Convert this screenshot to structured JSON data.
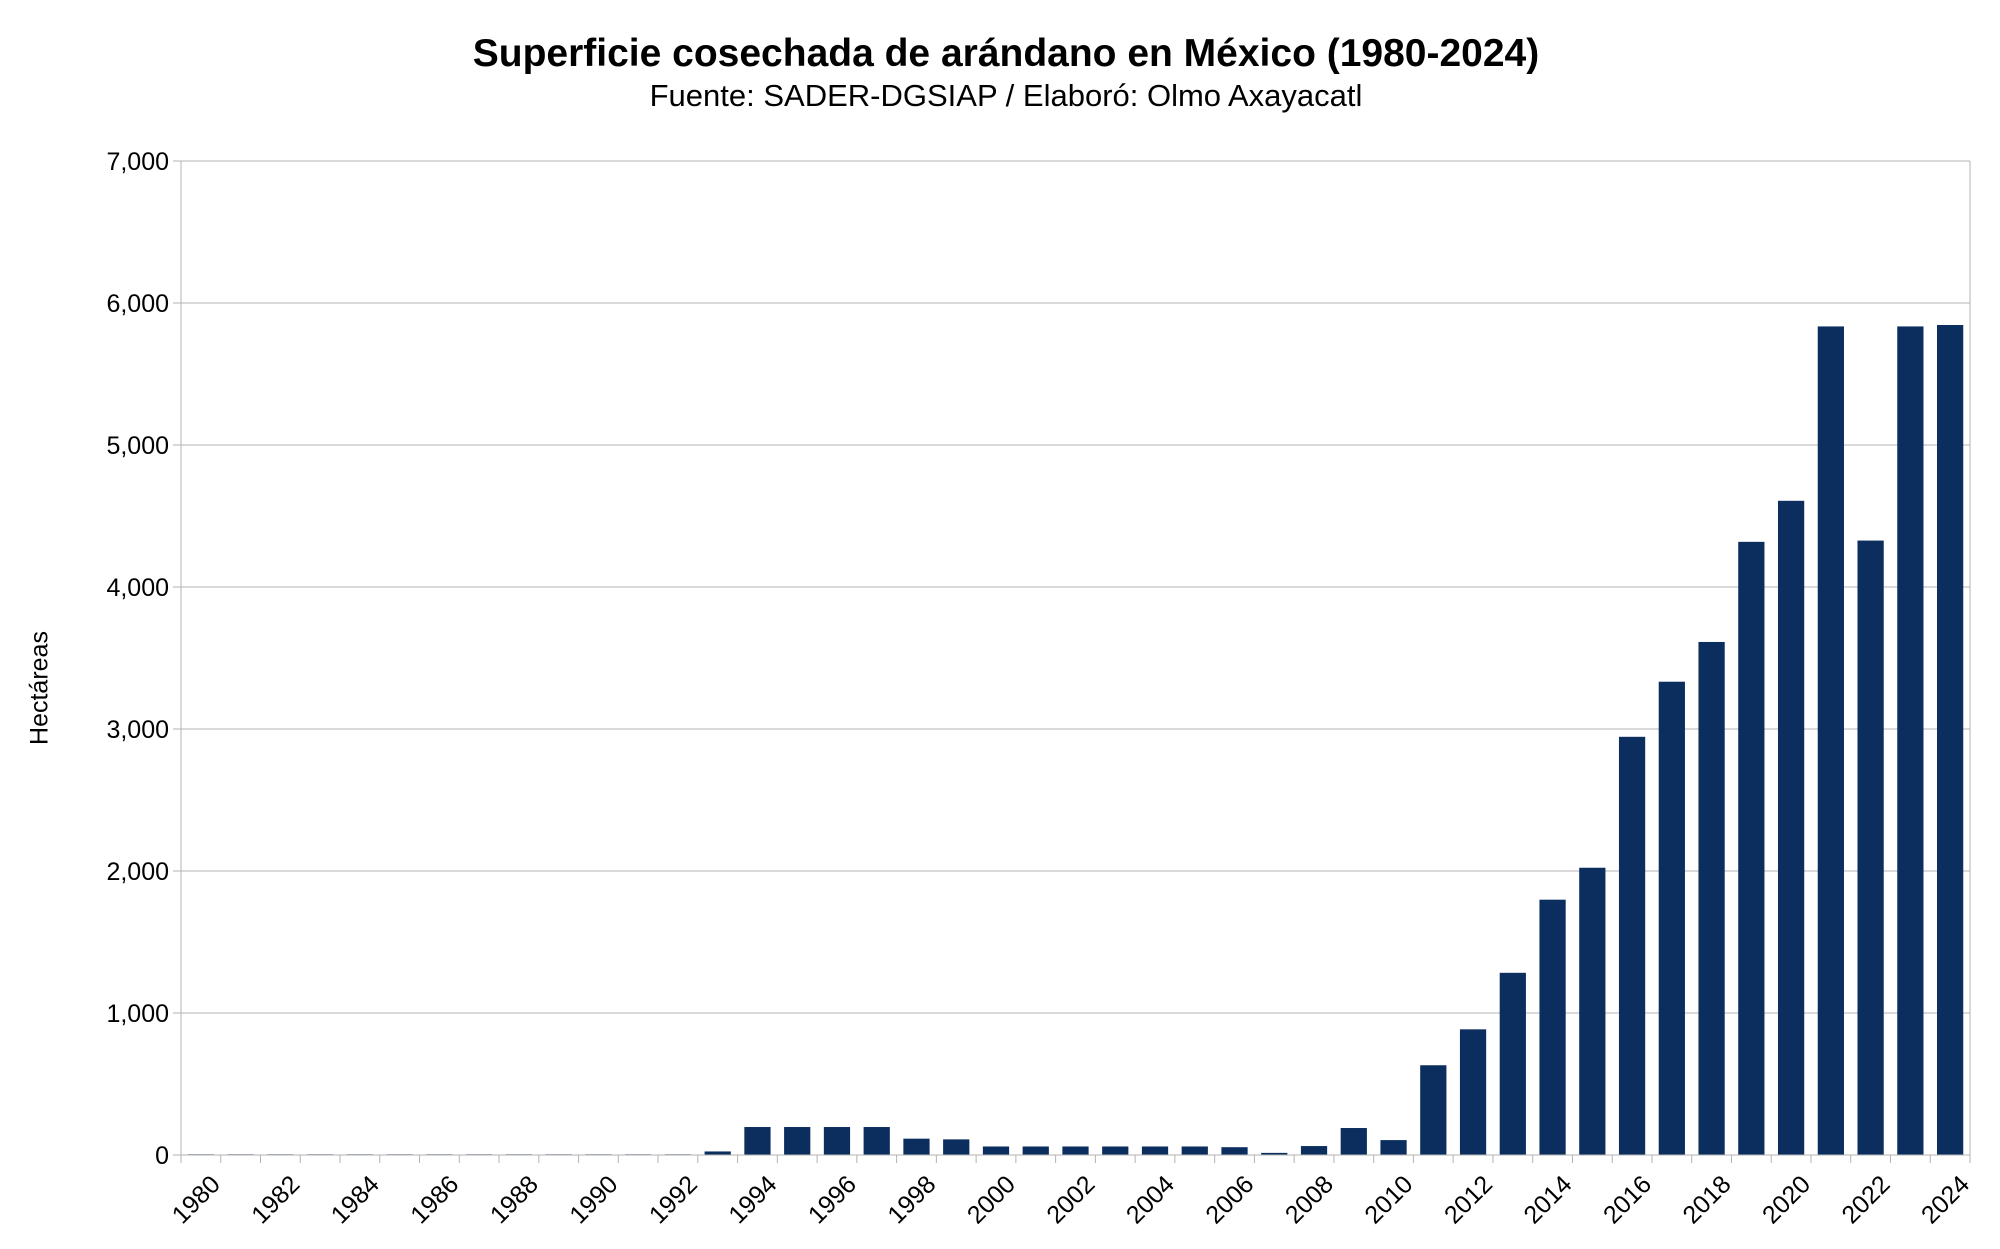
{
  "chart_data": {
    "type": "bar",
    "title": "Superficie cosechada de arándano en México (1980-2024)",
    "subtitle": "Fuente: SADER-DGSIAP / Elaboró: Olmo Axayacatl",
    "xlabel": "",
    "ylabel": "Hectáreas",
    "ylim": [
      0,
      7000
    ],
    "yticks": [
      "0",
      "1,000",
      "2,000",
      "3,000",
      "4,000",
      "5,000",
      "6,000",
      "7,000"
    ],
    "grid": true,
    "bar_color": "#0b2e5f",
    "categories": [
      "1980",
      "1981",
      "1982",
      "1983",
      "1984",
      "1985",
      "1986",
      "1987",
      "1988",
      "1989",
      "1990",
      "1991",
      "1992",
      "1993",
      "1994",
      "1995",
      "1996",
      "1997",
      "1998",
      "1999",
      "2000",
      "2001",
      "2002",
      "2003",
      "2004",
      "2005",
      "2006",
      "2007",
      "2008",
      "2009",
      "2010",
      "2011",
      "2012",
      "2013",
      "2014",
      "2015",
      "2016",
      "2017",
      "2018",
      "2019",
      "2020",
      "2021",
      "2022",
      "2023",
      "2024"
    ],
    "xtick_labels": [
      "1980",
      "1982",
      "1984",
      "1986",
      "1988",
      "1990",
      "1992",
      "1994",
      "1996",
      "1998",
      "2000",
      "2002",
      "2004",
      "2006",
      "2008",
      "2010",
      "2012",
      "2014",
      "2016",
      "2018",
      "2020",
      "2022",
      "2024"
    ],
    "values": [
      5,
      5,
      5,
      5,
      5,
      5,
      5,
      5,
      5,
      5,
      5,
      5,
      5,
      25,
      197,
      197,
      197,
      197,
      115,
      110,
      60,
      60,
      60,
      60,
      60,
      60,
      55,
      15,
      63,
      190,
      105,
      632,
      885,
      1283,
      1798,
      2023,
      2945,
      3333,
      3613,
      4318,
      4607,
      5835,
      4327,
      5835,
      5845
    ]
  }
}
